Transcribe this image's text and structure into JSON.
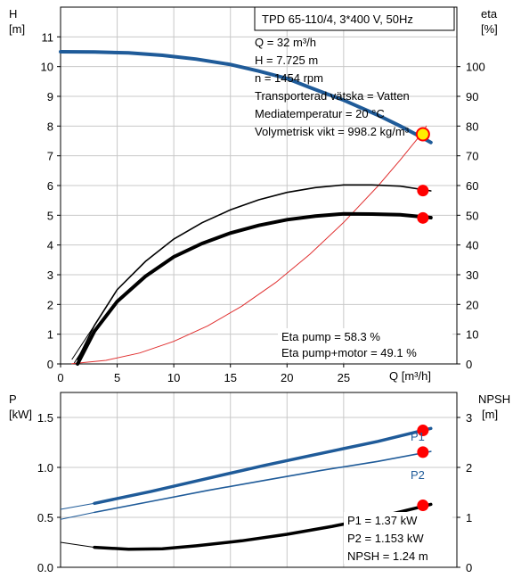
{
  "chart_data": [
    {
      "type": "line",
      "title": "TPD 65-110/4, 3*400 V, 50Hz",
      "xlabel": "Q [m³/h]",
      "ylabel_left": [
        "H",
        "[m]"
      ],
      "ylabel_right": [
        "eta",
        "[%]"
      ],
      "xlim": [
        0,
        35
      ],
      "ylim_left": [
        0,
        12
      ],
      "ylim_right": [
        0,
        120
      ],
      "x_ticks": [
        "0",
        "5",
        "10",
        "15",
        "20",
        "25"
      ],
      "y_ticks_left": [
        "0",
        "1",
        "2",
        "3",
        "4",
        "5",
        "6",
        "7",
        "8",
        "9",
        "10",
        "11"
      ],
      "y_ticks_right": [
        "0",
        "10",
        "20",
        "30",
        "40",
        "50",
        "60",
        "70",
        "80",
        "90",
        "100"
      ],
      "grid": true,
      "info_text": [
        "Q = 32 m³/h",
        "H = 7.725 m",
        "n = 1454 rpm",
        "Transporterad vätska = Vatten",
        "Mediatemperatur = 20 °C",
        "Volymetrisk vikt = 998.2 kg/m³"
      ],
      "annotations": [
        "Eta pump = 58.3 %",
        "Eta pump+motor = 49.1 %"
      ],
      "colors": {
        "head": "#1f5b99",
        "system": "#e03030",
        "eta": "#000000",
        "marker": "#ff0000",
        "duty": "#ffee00"
      },
      "series": [
        {
          "axis": "left",
          "values": [
            [
              0,
              10.5
            ],
            [
              3,
              10.49
            ],
            [
              6,
              10.46
            ],
            [
              9,
              10.38
            ],
            [
              12,
              10.25
            ],
            [
              15,
              10.07
            ],
            [
              17.5,
              9.85
            ],
            [
              20,
              9.6
            ],
            [
              22,
              9.3
            ],
            [
              25,
              8.87
            ],
            [
              28,
              8.37
            ],
            [
              30,
              8.0
            ],
            [
              32,
              7.6
            ],
            [
              32.7,
              7.45
            ]
          ]
        },
        {
          "axis": "left",
          "values": [
            [
              1,
              0.01
            ],
            [
              4,
              0.12
            ],
            [
              7,
              0.37
            ],
            [
              10,
              0.76
            ],
            [
              13,
              1.28
            ],
            [
              16,
              1.94
            ],
            [
              19,
              2.74
            ],
            [
              22,
              3.68
            ],
            [
              25,
              4.76
            ],
            [
              28,
              5.97
            ],
            [
              30,
              6.86
            ],
            [
              32,
              7.8
            ],
            [
              32.3,
              8.0
            ]
          ]
        },
        {
          "axis": "right",
          "values": [
            [
              1.5,
              1.5
            ],
            [
              3,
              13
            ],
            [
              5,
              25
            ],
            [
              7.5,
              34.5
            ],
            [
              10,
              42
            ],
            [
              12.5,
              47.5
            ],
            [
              15,
              51.8
            ],
            [
              17.5,
              55.2
            ],
            [
              20,
              57.7
            ],
            [
              22.5,
              59.3
            ],
            [
              25,
              60.2
            ],
            [
              27.5,
              60.2
            ],
            [
              30,
              59.8
            ],
            [
              32.7,
              58.2
            ]
          ]
        },
        {
          "axis": "right",
          "values": [
            [
              1.5,
              0
            ],
            [
              3,
              11
            ],
            [
              5,
              21
            ],
            [
              7.5,
              29.5
            ],
            [
              10,
              36
            ],
            [
              12.5,
              40.5
            ],
            [
              15,
              44
            ],
            [
              17.5,
              46.6
            ],
            [
              20,
              48.5
            ],
            [
              22.5,
              49.7
            ],
            [
              25,
              50.5
            ],
            [
              27.5,
              50.4
            ],
            [
              30,
              50.2
            ],
            [
              32.7,
              49.2
            ]
          ]
        }
      ],
      "markers": [
        {
          "axis": "right",
          "x": 32,
          "y": 58.3
        },
        {
          "axis": "right",
          "x": 32,
          "y": 49.1
        }
      ],
      "duty_point": {
        "axis": "left",
        "x": 32,
        "y": 7.725
      }
    },
    {
      "type": "line",
      "xlim": [
        0,
        35
      ],
      "ylabel_left": [
        "P",
        "[kW]"
      ],
      "ylabel_right": [
        "NPSH",
        "[m]"
      ],
      "ylim_left": [
        0,
        1.75
      ],
      "ylim_right": [
        0,
        3.5
      ],
      "y_ticks_left": [
        "0.0",
        "0.5",
        "1.0",
        "1.5"
      ],
      "y_ticks_right": [
        "0",
        "1",
        "2",
        "3"
      ],
      "grid": true,
      "info_text": [
        "P1 = 1.37 kW",
        "P2 = 1.153 kW",
        "NPSH = 1.24 m"
      ],
      "series": [
        {
          "name": "P1",
          "axis": "left",
          "values": [
            [
              0,
              0.58
            ],
            [
              3,
              0.64
            ],
            [
              8,
              0.76
            ],
            [
              13,
              0.89
            ],
            [
              18,
              1.02
            ],
            [
              23,
              1.14
            ],
            [
              28,
              1.26
            ],
            [
              32.7,
              1.39
            ]
          ]
        },
        {
          "name": "P2",
          "axis": "left",
          "values": [
            [
              0,
              0.48
            ],
            [
              3,
              0.55
            ],
            [
              8,
              0.66
            ],
            [
              13,
              0.77
            ],
            [
              18,
              0.87
            ],
            [
              23,
              0.97
            ],
            [
              28,
              1.06
            ],
            [
              32.7,
              1.16
            ]
          ]
        },
        {
          "axis": "right",
          "values": [
            [
              0,
              0.5
            ],
            [
              3,
              0.4
            ],
            [
              6,
              0.36
            ],
            [
              9,
              0.37
            ],
            [
              12,
              0.43
            ],
            [
              16,
              0.53
            ],
            [
              20,
              0.66
            ],
            [
              24,
              0.82
            ],
            [
              28,
              1.0
            ],
            [
              32,
              1.22
            ],
            [
              32.7,
              1.26
            ]
          ]
        }
      ],
      "markers": [
        {
          "axis": "left",
          "x": 32,
          "y": 1.37
        },
        {
          "axis": "left",
          "x": 32,
          "y": 1.153
        },
        {
          "axis": "right",
          "x": 32,
          "y": 1.24
        }
      ]
    }
  ]
}
